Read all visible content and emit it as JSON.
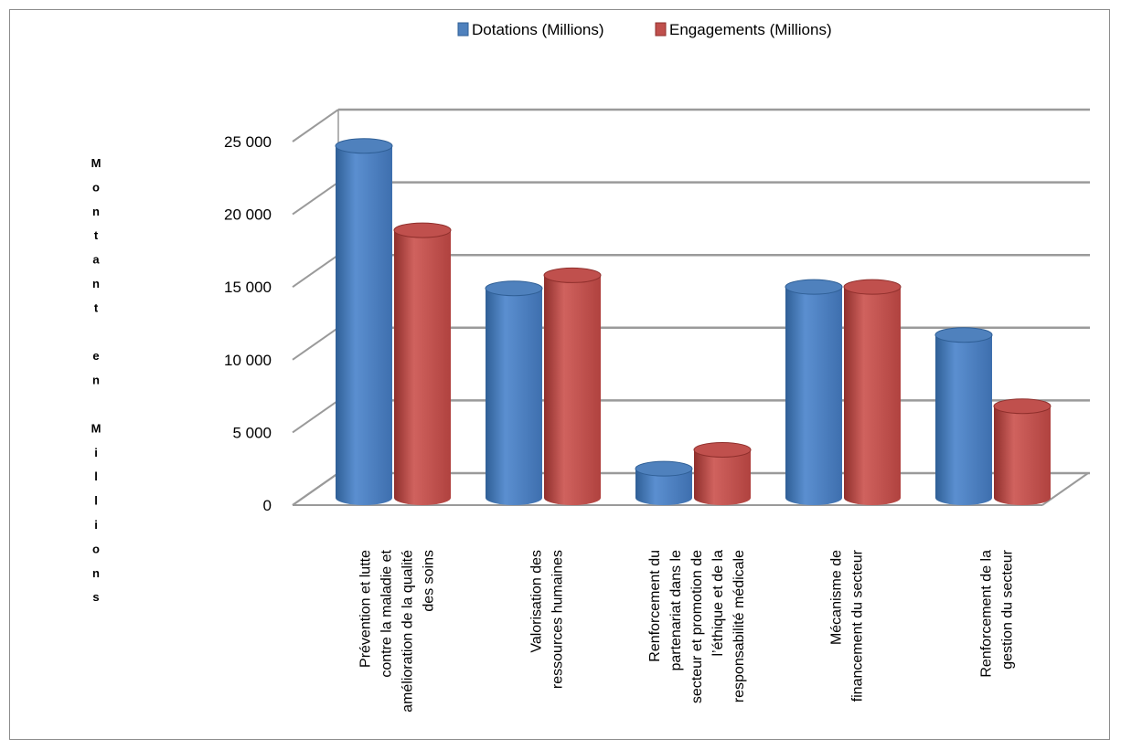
{
  "chart_data": {
    "type": "bar",
    "title": "",
    "ylabel": "Montant en Millions",
    "ylim": [
      0,
      25000
    ],
    "yticks": [
      "0",
      "5 000",
      "10 000",
      "15 000",
      "20 000",
      "25 000"
    ],
    "ytick_values": [
      0,
      5000,
      10000,
      15000,
      20000,
      25000
    ],
    "categories": [
      [
        "Prévention et lutte",
        "contre la maladie et",
        "amélioration de la qualité",
        "des soins"
      ],
      [
        "Valorisation des",
        "ressources humaines"
      ],
      [
        "Renforcement du",
        "partenariat dans le",
        "secteur et  promotion de",
        "l’éthique et de la",
        "responsabilité  médicale"
      ],
      [
        "Mécanisme de",
        "financement du secteur"
      ],
      [
        "Renforcement de la",
        "gestion du secteur"
      ]
    ],
    "series": [
      {
        "name": "Dotations (Millions)",
        "color": "#4f81bd",
        "values": [
          24200,
          14400,
          2000,
          14500,
          11200
        ]
      },
      {
        "name": "Engagements (Millions)",
        "color": "#c0504d",
        "values": [
          18400,
          15300,
          3300,
          14500,
          6300
        ]
      }
    ],
    "grid": true,
    "legend_position": "top"
  }
}
